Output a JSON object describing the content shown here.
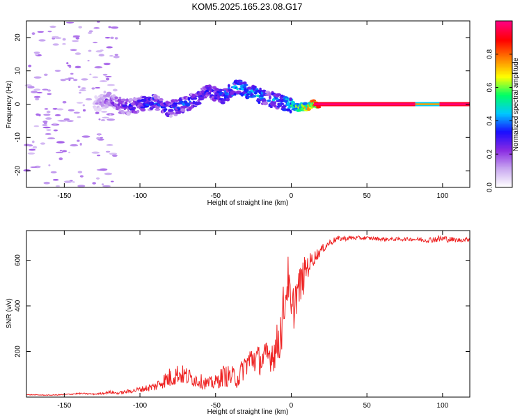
{
  "title": "KOM5.2025.165.23.08.G17",
  "chart_data": [
    {
      "type": "heatmap",
      "xlabel": "Height of straight line (km)",
      "ylabel": "Frequency (Hz)",
      "xlim": [
        -175,
        118
      ],
      "ylim": [
        -25,
        25
      ],
      "xticks": [
        -150,
        -100,
        -50,
        0,
        50,
        100
      ],
      "yticks": [
        -20,
        -10,
        0,
        10,
        20
      ],
      "colorbar": {
        "label": "Normalized spectral amplitude",
        "range": [
          0,
          1
        ],
        "ticks": [
          0.0,
          0.2,
          0.4,
          0.6,
          0.8
        ],
        "colormap": [
          "#ffffff",
          "#c9a8f0",
          "#8a2be2",
          "#1a0dff",
          "#00c8ff",
          "#00ff66",
          "#ffff00",
          "#ff8000",
          "#ff0000",
          "#ff0080"
        ]
      },
      "ridge": {
        "x": [
          -130,
          -120,
          -110,
          -100,
          -90,
          -80,
          -70,
          -60,
          -55,
          -50,
          -45,
          -40,
          -35,
          -30,
          -25,
          -20,
          -15,
          -10,
          -5,
          0,
          5,
          10,
          15,
          20,
          40,
          60,
          80,
          90,
          100,
          118
        ],
        "freq": [
          0,
          1.5,
          -1,
          0,
          0.5,
          -1.5,
          0,
          2,
          4,
          3,
          2,
          4,
          5,
          4.5,
          3,
          2.5,
          1.5,
          1,
          0.5,
          -0.5,
          -1,
          -0.8,
          0,
          0,
          0,
          0,
          0,
          0,
          0,
          0
        ],
        "amp": [
          0.12,
          0.25,
          0.3,
          0.35,
          0.4,
          0.35,
          0.4,
          0.35,
          0.3,
          0.35,
          0.4,
          0.45,
          0.45,
          0.5,
          0.5,
          0.45,
          0.4,
          0.45,
          0.5,
          0.55,
          0.6,
          0.7,
          0.85,
          0.95,
          0.97,
          0.97,
          0.95,
          0.7,
          0.95,
          0.97
        ]
      }
    },
    {
      "type": "line",
      "xlabel": "Height of straight line (km)",
      "ylabel": "SNR (v/v)",
      "xlim": [
        -175,
        118
      ],
      "ylim": [
        0,
        730
      ],
      "xticks": [
        -150,
        -100,
        -50,
        0,
        50,
        100
      ],
      "yticks": [
        200,
        400,
        600
      ],
      "color": "#ee2222",
      "x": [
        -175,
        -160,
        -150,
        -140,
        -130,
        -125,
        -120,
        -115,
        -110,
        -105,
        -100,
        -95,
        -90,
        -85,
        -80,
        -75,
        -70,
        -65,
        -60,
        -55,
        -50,
        -45,
        -40,
        -35,
        -30,
        -25,
        -20,
        -15,
        -10,
        -7,
        -5,
        -2,
        0,
        3,
        5,
        8,
        10,
        12,
        15,
        20,
        25,
        30,
        40,
        50,
        60,
        70,
        80,
        90,
        100,
        110,
        118
      ],
      "values": [
        10,
        8,
        10,
        15,
        12,
        15,
        20,
        15,
        20,
        25,
        30,
        35,
        40,
        60,
        70,
        90,
        80,
        70,
        60,
        50,
        55,
        80,
        75,
        70,
        130,
        150,
        140,
        160,
        180,
        250,
        350,
        500,
        300,
        420,
        450,
        500,
        550,
        570,
        600,
        640,
        670,
        690,
        695,
        695,
        690,
        690,
        690,
        685,
        690,
        685,
        690
      ],
      "noise": [
        2,
        2,
        3,
        4,
        4,
        5,
        8,
        8,
        10,
        12,
        15,
        20,
        25,
        40,
        60,
        55,
        55,
        45,
        40,
        35,
        40,
        60,
        60,
        60,
        70,
        90,
        80,
        90,
        120,
        150,
        150,
        120,
        150,
        120,
        110,
        100,
        80,
        60,
        40,
        25,
        20,
        15,
        12,
        10,
        10,
        10,
        10,
        15,
        20,
        12,
        10
      ]
    }
  ]
}
